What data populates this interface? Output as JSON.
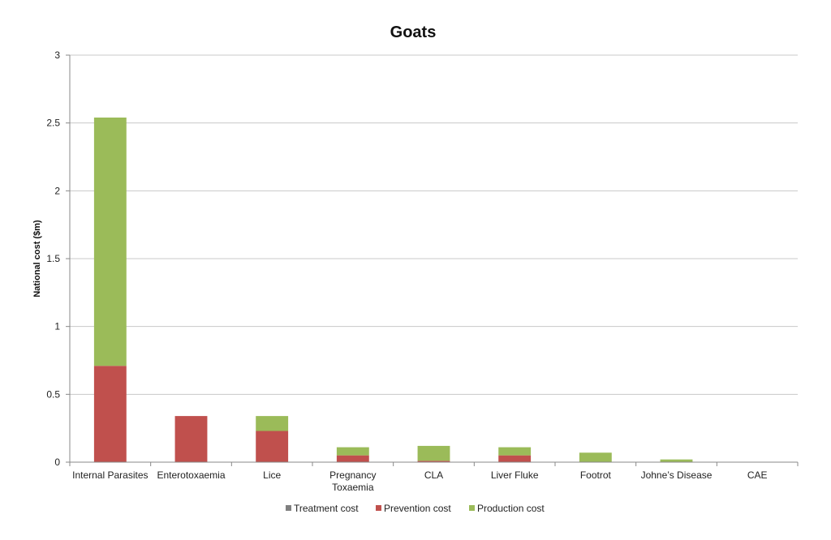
{
  "chart_data": {
    "type": "bar",
    "stacked": true,
    "title": "Goats",
    "xlabel": "",
    "ylabel": "National cost ($m)",
    "ylim": [
      0,
      3
    ],
    "yticks": [
      "0",
      "0.5",
      "1",
      "1.5",
      "2",
      "2.5",
      "3"
    ],
    "grid": true,
    "legend_position": "bottom",
    "categories": [
      [
        "Internal Parasites"
      ],
      [
        "Enterotoxaemia"
      ],
      [
        "Lice"
      ],
      [
        "Pregnancy",
        "Toxaemia"
      ],
      [
        "CLA"
      ],
      [
        "Liver Fluke"
      ],
      [
        "Footrot"
      ],
      [
        "Johne’s Disease"
      ],
      [
        "CAE"
      ]
    ],
    "series": [
      {
        "name": "Treatment cost",
        "color": "#7f7f7f",
        "values": [
          0,
          0,
          0,
          0,
          0,
          0,
          0,
          0,
          0
        ]
      },
      {
        "name": "Prevention cost",
        "color": "#c0504d",
        "values": [
          0.71,
          0.34,
          0.23,
          0.05,
          0.01,
          0.05,
          0,
          0,
          0
        ]
      },
      {
        "name": "Production cost",
        "color": "#9bbb59",
        "values": [
          1.83,
          0,
          0.11,
          0.06,
          0.11,
          0.06,
          0.07,
          0.02,
          0
        ]
      }
    ]
  }
}
